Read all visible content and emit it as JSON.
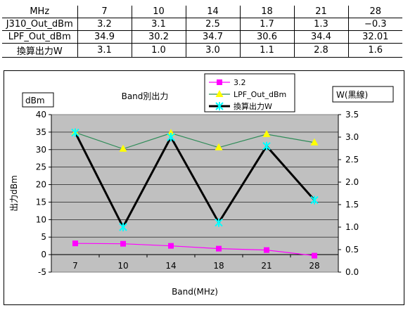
{
  "table": {
    "header": [
      "MHz",
      "7",
      "10",
      "14",
      "18",
      "21",
      "28"
    ],
    "rows": [
      [
        "J310_Out_dBm",
        "3.2",
        "3.1",
        "2.5",
        "1.7",
        "1.3",
        "−0.3"
      ],
      [
        "LPF_Out_dBm",
        "34.9",
        "30.2",
        "34.7",
        "30.6",
        "34.4",
        "32.01"
      ],
      [
        "換算出力W",
        "3.1",
        "1.0",
        "3.0",
        "1.1",
        "2.8",
        "1.6"
      ]
    ]
  },
  "chart_data": {
    "type": "line",
    "title": "Band別出力",
    "xlabel": "Band(MHz)",
    "ylabel": "出力dBm",
    "left_unit_box": "dBm",
    "right_unit_box": "W(黒線)",
    "categories": [
      "7",
      "10",
      "14",
      "18",
      "21",
      "28"
    ],
    "ylim": [
      -5,
      40
    ],
    "yticks": [
      -5,
      0,
      5,
      10,
      15,
      20,
      25,
      30,
      35,
      40
    ],
    "y2lim": [
      0.0,
      3.5
    ],
    "y2ticks": [
      "0.0",
      "0.5",
      "1.0",
      "1.5",
      "2.0",
      "2.5",
      "3.0",
      "3.5"
    ],
    "grid": true,
    "legend_position": "top-center",
    "series": [
      {
        "name": "3.2",
        "axis": "left",
        "values": [
          3.2,
          3.1,
          2.5,
          1.7,
          1.3,
          -0.3
        ],
        "color": "#ff00ff",
        "marker": "square"
      },
      {
        "name": "LPF_Out_dBm",
        "axis": "left",
        "values": [
          34.9,
          30.2,
          34.7,
          30.6,
          34.4,
          32.01
        ],
        "color": "#2e8b57",
        "marker": "triangle",
        "marker_color": "#ffff00"
      },
      {
        "name": "換算出力W",
        "axis": "right",
        "values": [
          3.1,
          1.0,
          3.0,
          1.1,
          2.8,
          1.6
        ],
        "color": "#000000",
        "marker": "x",
        "marker_color": "#00ffff"
      }
    ]
  }
}
